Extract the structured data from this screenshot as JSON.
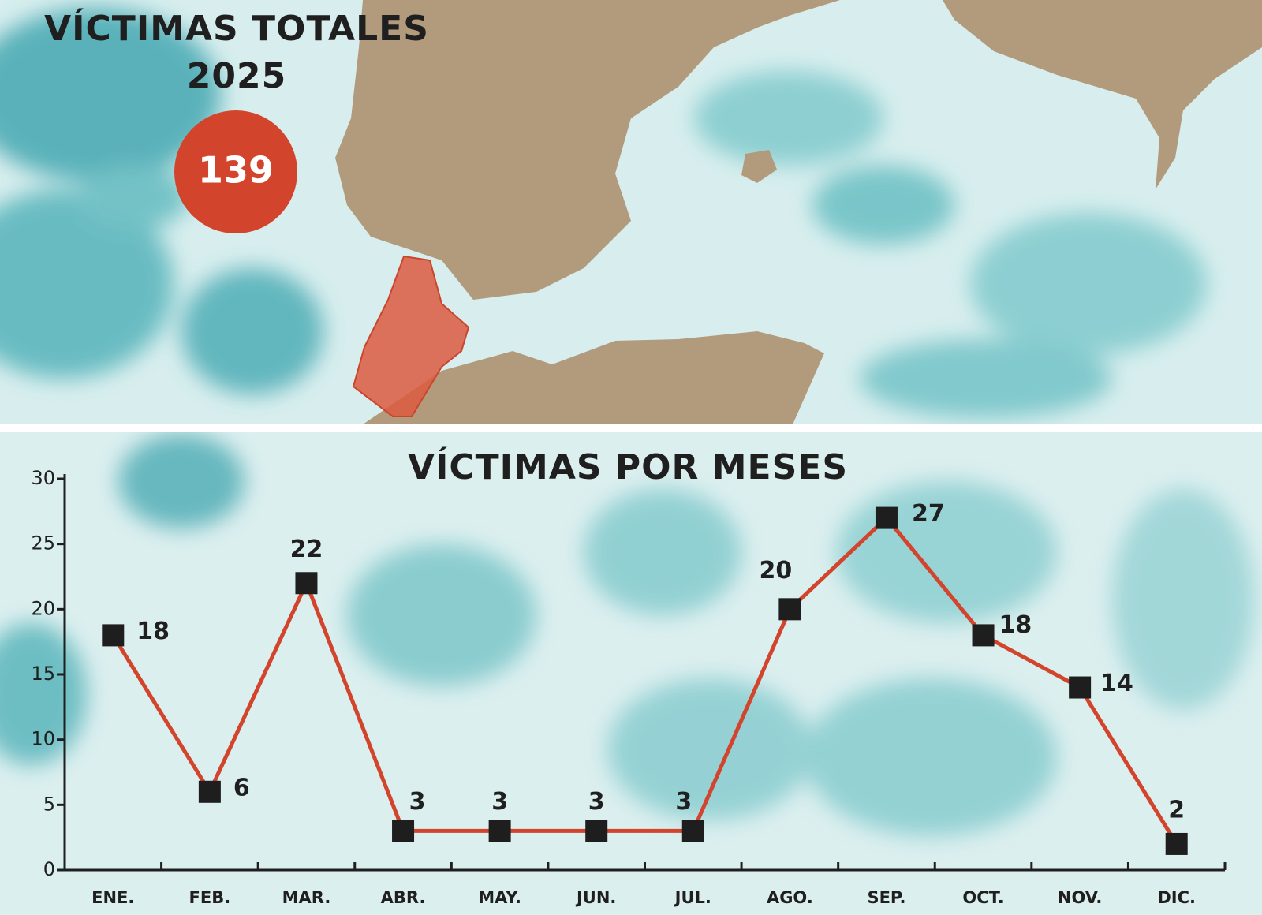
{
  "header": {
    "title": "VÍCTIMAS TOTALES",
    "year": "2025",
    "total": 139
  },
  "chart_data": {
    "type": "line",
    "title": "VÍCTIMAS POR MESES",
    "categories": [
      "ENE.",
      "FEB.",
      "MAR.",
      "ABR.",
      "MAY.",
      "JUN.",
      "JUL.",
      "AGO.",
      "SEP.",
      "OCT.",
      "NOV.",
      "DIC."
    ],
    "values": [
      18,
      6,
      22,
      3,
      3,
      3,
      3,
      20,
      27,
      18,
      14,
      2
    ],
    "color": "#d2442c",
    "marker_color": "#1e1e1e",
    "ylim": [
      0,
      30
    ],
    "yticks": [
      0,
      5,
      10,
      15,
      20,
      25,
      30
    ],
    "grid": false
  }
}
